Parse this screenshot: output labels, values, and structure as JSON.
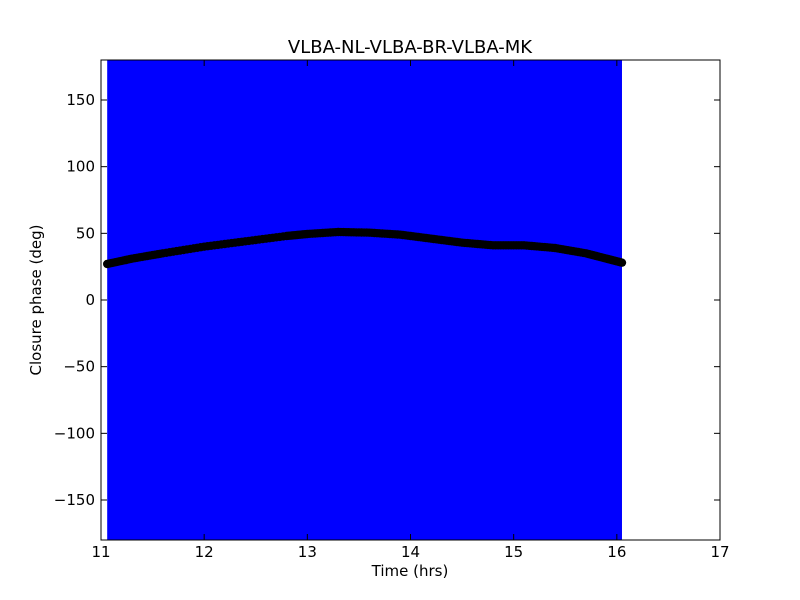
{
  "chart_data": {
    "type": "scatter",
    "title": "VLBA-NL-VLBA-BR-VLBA-MK",
    "xlabel": "Time (hrs)",
    "ylabel": "Closure phase (deg)",
    "xlim": [
      11,
      17
    ],
    "ylim": [
      -180,
      180
    ],
    "xticks": [
      11,
      12,
      13,
      14,
      15,
      16,
      17
    ],
    "yticks": [
      -150,
      -100,
      -50,
      0,
      50,
      100,
      150
    ],
    "grid": false,
    "colors": {
      "fill": "#0000ff",
      "points": "#000000",
      "axes": "#000000"
    },
    "shaded_region": {
      "x_start": 11.06,
      "x_end": 16.05,
      "y_min": -180,
      "y_max": 180
    },
    "series": [
      {
        "marker": "circle",
        "x": [
          11.06,
          11.3,
          11.6,
          12.0,
          12.4,
          12.8,
          13.0,
          13.3,
          13.6,
          13.9,
          14.2,
          14.5,
          14.8,
          15.1,
          15.4,
          15.7,
          15.9,
          16.05
        ],
        "y": [
          27,
          31,
          35,
          40,
          44,
          48,
          49.5,
          51,
          50.5,
          49,
          46,
          43,
          41,
          41,
          39,
          35,
          31,
          28
        ]
      }
    ]
  }
}
